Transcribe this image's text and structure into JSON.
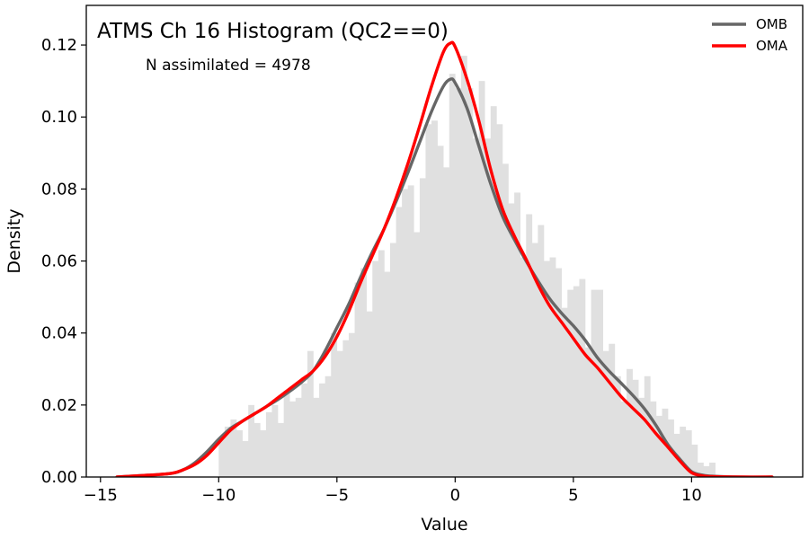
{
  "chart_data": {
    "type": "histogram",
    "title": "ATMS Ch 16 Histogram (QC2==0)",
    "annotation": "N assimilated = 4978",
    "xlabel": "Value",
    "ylabel": "Density",
    "xlim": [
      -15.6,
      14.7
    ],
    "ylim": [
      0,
      0.131
    ],
    "xticks": [
      -15,
      -10,
      -5,
      0,
      5,
      10
    ],
    "xtick_labels": [
      "−15",
      "−10",
      "−5",
      "0",
      "5",
      "10"
    ],
    "yticks": [
      0,
      0.02,
      0.04,
      0.06,
      0.08,
      0.1,
      0.12
    ],
    "ytick_labels": [
      "0.00",
      "0.02",
      "0.04",
      "0.06",
      "0.08",
      "0.10",
      "0.12"
    ],
    "grid": false,
    "legend_position": "top-right",
    "histogram": {
      "bin_start": -10.0,
      "bin_width": 0.25,
      "color": "#e0e0e0",
      "values": [
        0.011,
        0.014,
        0.016,
        0.013,
        0.01,
        0.02,
        0.015,
        0.013,
        0.018,
        0.02,
        0.015,
        0.024,
        0.021,
        0.022,
        0.026,
        0.035,
        0.022,
        0.026,
        0.028,
        0.04,
        0.035,
        0.038,
        0.04,
        0.054,
        0.058,
        0.046,
        0.06,
        0.063,
        0.057,
        0.065,
        0.075,
        0.08,
        0.081,
        0.068,
        0.083,
        0.098,
        0.099,
        0.092,
        0.086,
        0.112,
        0.108,
        0.117,
        0.108,
        0.094,
        0.11,
        0.094,
        0.103,
        0.098,
        0.087,
        0.076,
        0.079,
        0.061,
        0.073,
        0.065,
        0.07,
        0.06,
        0.061,
        0.058,
        0.047,
        0.052,
        0.053,
        0.055,
        0.036,
        0.052,
        0.052,
        0.035,
        0.037,
        0.028,
        0.021,
        0.03,
        0.027,
        0.022,
        0.028,
        0.021,
        0.017,
        0.019,
        0.016,
        0.012,
        0.014,
        0.013,
        0.009,
        0.004,
        0.003,
        0.004
      ]
    },
    "series": [
      {
        "name": "OMB",
        "color": "#666666",
        "x": [
          -14.3,
          -13,
          -12,
          -11.5,
          -11,
          -10.5,
          -10,
          -9.5,
          -9,
          -8.5,
          -8,
          -7.5,
          -7,
          -6.5,
          -6,
          -5.5,
          -5,
          -4.5,
          -4,
          -3.5,
          -3,
          -2.5,
          -2,
          -1.5,
          -1,
          -0.5,
          -0.2,
          0,
          0.5,
          1,
          1.5,
          2,
          2.5,
          3,
          3.5,
          4,
          4.5,
          5,
          5.5,
          6,
          6.5,
          7,
          7.5,
          8,
          8.5,
          9,
          9.5,
          10,
          10.5,
          11,
          12,
          13.4
        ],
        "y": [
          0.0,
          0.0005,
          0.001,
          0.002,
          0.004,
          0.007,
          0.0105,
          0.0135,
          0.0155,
          0.0175,
          0.0195,
          0.0215,
          0.0238,
          0.0263,
          0.0295,
          0.035,
          0.0415,
          0.048,
          0.0555,
          0.0625,
          0.069,
          0.0765,
          0.0845,
          0.093,
          0.1015,
          0.1085,
          0.1105,
          0.1095,
          0.1025,
          0.092,
          0.0815,
          0.0725,
          0.066,
          0.06,
          0.0545,
          0.0495,
          0.0455,
          0.042,
          0.038,
          0.0333,
          0.0295,
          0.0262,
          0.0228,
          0.019,
          0.0143,
          0.009,
          0.005,
          0.0015,
          0.0005,
          0.0002,
          0.0,
          0.0
        ]
      },
      {
        "name": "OMA",
        "color": "#ff0000",
        "x": [
          -14.3,
          -13,
          -12,
          -11.5,
          -11,
          -10.5,
          -10,
          -9.5,
          -9,
          -8.5,
          -8,
          -7.5,
          -7,
          -6.5,
          -6,
          -5.5,
          -5,
          -4.5,
          -4,
          -3.5,
          -3,
          -2.5,
          -2,
          -1.5,
          -1,
          -0.5,
          -0.2,
          0,
          0.5,
          1,
          1.5,
          2,
          2.5,
          3,
          3.5,
          4,
          4.5,
          5,
          5.5,
          6,
          6.5,
          7,
          7.5,
          8,
          8.5,
          9,
          9.5,
          10,
          10.5,
          11,
          12,
          13.4
        ],
        "y": [
          0.0,
          0.0005,
          0.001,
          0.002,
          0.0035,
          0.006,
          0.0095,
          0.013,
          0.0155,
          0.0175,
          0.0195,
          0.022,
          0.0245,
          0.027,
          0.0295,
          0.0335,
          0.039,
          0.046,
          0.054,
          0.0615,
          0.069,
          0.0775,
          0.087,
          0.0975,
          0.1085,
          0.118,
          0.1205,
          0.1195,
          0.1105,
          0.099,
          0.0855,
          0.0745,
          0.067,
          0.0605,
          0.0535,
          0.0475,
          0.043,
          0.0385,
          0.034,
          0.0305,
          0.0265,
          0.0225,
          0.0192,
          0.016,
          0.012,
          0.0083,
          0.0045,
          0.0012,
          0.0003,
          0.0001,
          0.0,
          0.0
        ]
      }
    ]
  }
}
